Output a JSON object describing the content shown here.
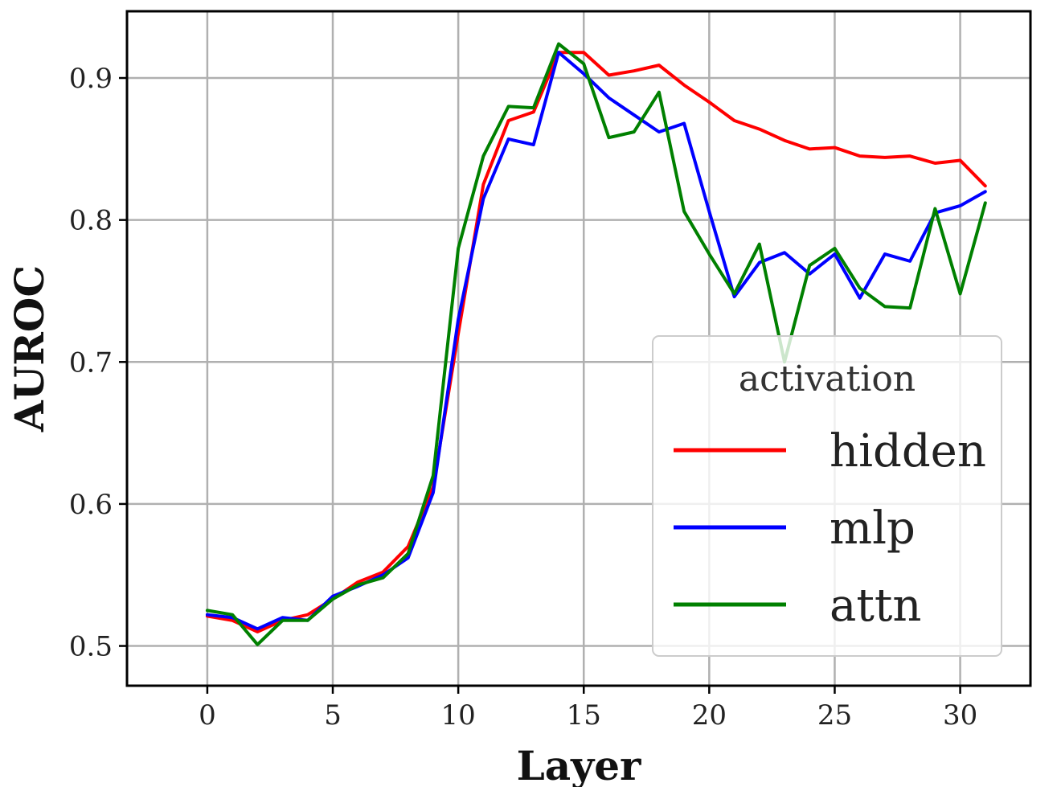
{
  "chart_data": {
    "type": "line",
    "xlabel": "Layer",
    "ylabel": "AUROC",
    "xlim": [
      -3.2,
      32.8
    ],
    "ylim": [
      0.472,
      0.947
    ],
    "xticks": [
      0,
      5,
      10,
      15,
      20,
      25,
      30
    ],
    "yticks": [
      0.5,
      0.6,
      0.7,
      0.8,
      0.9
    ],
    "grid": true,
    "legend": {
      "title": "activation",
      "position": "bottom-right"
    },
    "x": [
      0,
      1,
      2,
      3,
      4,
      5,
      6,
      7,
      8,
      9,
      10,
      11,
      12,
      13,
      14,
      15,
      16,
      17,
      18,
      19,
      20,
      21,
      22,
      23,
      24,
      25,
      26,
      27,
      28,
      29,
      30,
      31
    ],
    "series": [
      {
        "name": "hidden",
        "color": "#ff0000",
        "values": [
          0.521,
          0.518,
          0.51,
          0.518,
          0.522,
          0.533,
          0.545,
          0.552,
          0.57,
          0.612,
          0.72,
          0.825,
          0.87,
          0.876,
          0.918,
          0.918,
          0.902,
          0.905,
          0.909,
          0.895,
          0.883,
          0.87,
          0.864,
          0.856,
          0.85,
          0.851,
          0.845,
          0.844,
          0.845,
          0.84,
          0.842,
          0.824
        ]
      },
      {
        "name": "mlp",
        "color": "#0000ff",
        "values": [
          0.522,
          0.52,
          0.512,
          0.52,
          0.518,
          0.535,
          0.542,
          0.55,
          0.562,
          0.608,
          0.73,
          0.815,
          0.857,
          0.853,
          0.918,
          0.903,
          0.886,
          0.874,
          0.862,
          0.868,
          0.806,
          0.746,
          0.77,
          0.777,
          0.762,
          0.776,
          0.745,
          0.776,
          0.771,
          0.805,
          0.81,
          0.82
        ]
      },
      {
        "name": "attn",
        "color": "#008000",
        "values": [
          0.525,
          0.522,
          0.501,
          0.518,
          0.518,
          0.533,
          0.543,
          0.548,
          0.565,
          0.62,
          0.78,
          0.845,
          0.88,
          0.879,
          0.924,
          0.91,
          0.858,
          0.862,
          0.89,
          0.806,
          0.776,
          0.748,
          0.783,
          0.7,
          0.768,
          0.78,
          0.752,
          0.739,
          0.738,
          0.808,
          0.748,
          0.812
        ]
      }
    ]
  }
}
